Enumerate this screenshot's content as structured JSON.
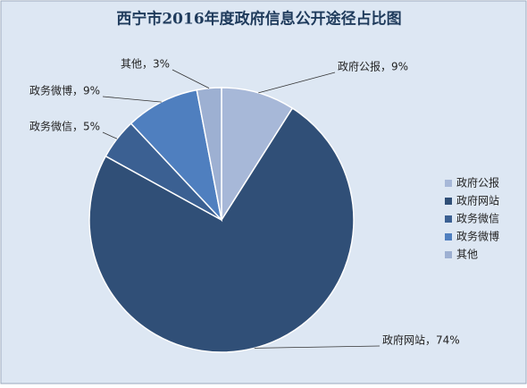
{
  "chart_data": {
    "type": "pie",
    "title": "西宁市2016年度政府信息公开途径占比图",
    "categories": [
      "政府公报",
      "政府网站",
      "政务微信",
      "政务微博",
      "其他"
    ],
    "values": [
      9,
      74,
      5,
      9,
      3
    ],
    "value_labels": [
      "政府公报，9%",
      "政府网站，74%",
      "政务微信，5%",
      "政务微博，9%",
      "其他，3%"
    ],
    "colors": [
      "#a7b8d8",
      "#304f77",
      "#3b6092",
      "#4f7fbf",
      "#9db0d2"
    ],
    "legend": "right"
  }
}
